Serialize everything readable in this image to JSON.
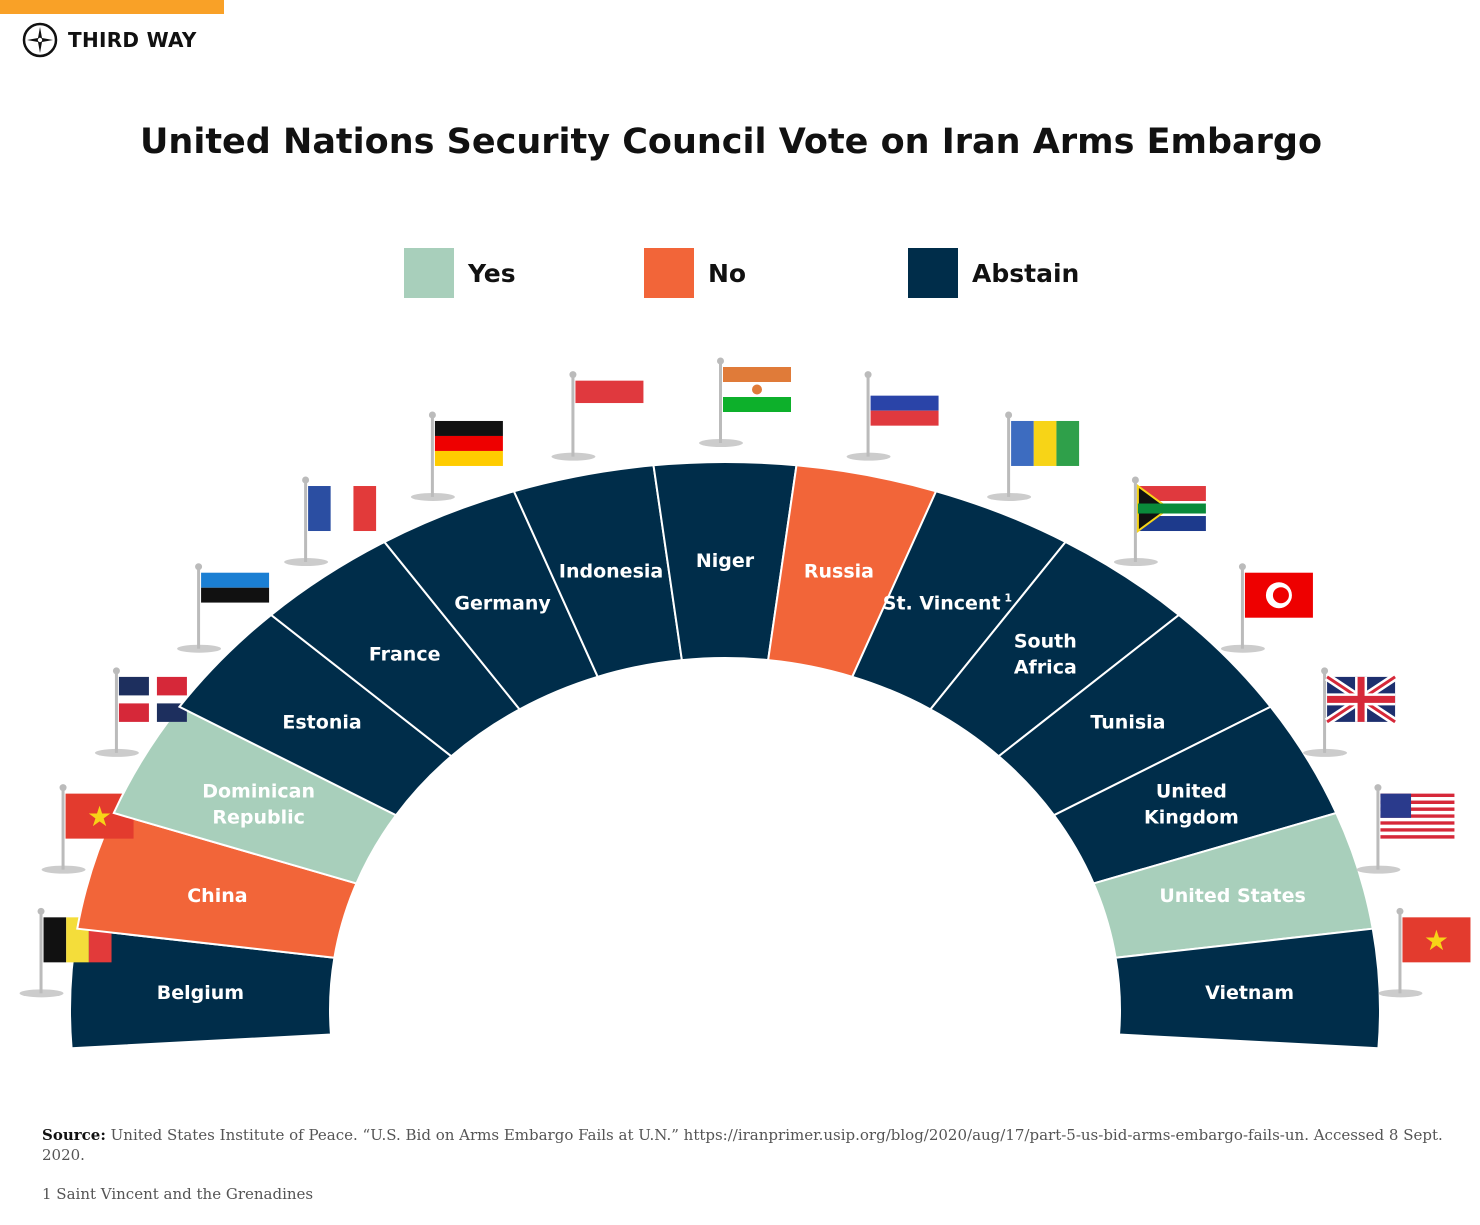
{
  "brand": {
    "name": "THIRD WAY",
    "accent": "#f9a127",
    "logo_icon": "compass-star-icon"
  },
  "title": "United Nations Security Council Vote on Iran Arms Embargo",
  "legend": [
    {
      "key": "yes",
      "label": "Yes",
      "color": "#a8cfbb"
    },
    {
      "key": "no",
      "label": "No",
      "color": "#f26539"
    },
    {
      "key": "abstain",
      "label": "Abstain",
      "color": "#002d4a"
    }
  ],
  "chart_data": {
    "type": "pie",
    "variant": "semicircle-parliament",
    "title": "United Nations Security Council Vote on Iran Arms Embargo",
    "categories": [
      "Belgium",
      "China",
      "Dominican Republic",
      "Estonia",
      "France",
      "Germany",
      "Indonesia",
      "Niger",
      "Russia",
      "St. Vincent",
      "South Africa",
      "Tunisia",
      "United Kingdom",
      "United States",
      "Vietnam"
    ],
    "members": [
      {
        "country": "Belgium",
        "lines": [
          "Belgium"
        ],
        "vote": "abstain"
      },
      {
        "country": "China",
        "lines": [
          "China"
        ],
        "vote": "no"
      },
      {
        "country": "Dominican Republic",
        "lines": [
          "Dominican",
          "Republic"
        ],
        "vote": "yes"
      },
      {
        "country": "Estonia",
        "lines": [
          "Estonia"
        ],
        "vote": "abstain"
      },
      {
        "country": "France",
        "lines": [
          "France"
        ],
        "vote": "abstain"
      },
      {
        "country": "Germany",
        "lines": [
          "Germany"
        ],
        "vote": "abstain"
      },
      {
        "country": "Indonesia",
        "lines": [
          "Indonesia"
        ],
        "vote": "abstain"
      },
      {
        "country": "Niger",
        "lines": [
          "Niger"
        ],
        "vote": "abstain"
      },
      {
        "country": "Russia",
        "lines": [
          "Russia"
        ],
        "vote": "no"
      },
      {
        "country": "St. Vincent",
        "lines": [
          "St. Vincent"
        ],
        "footnote_mark": "1",
        "vote": "abstain"
      },
      {
        "country": "South Africa",
        "lines": [
          "South",
          "Africa"
        ],
        "vote": "abstain"
      },
      {
        "country": "Tunisia",
        "lines": [
          "Tunisia"
        ],
        "vote": "abstain"
      },
      {
        "country": "United Kingdom",
        "lines": [
          "United",
          "Kingdom"
        ],
        "vote": "abstain"
      },
      {
        "country": "United States",
        "lines": [
          "United States"
        ],
        "vote": "yes"
      },
      {
        "country": "Vietnam",
        "lines": [
          "Vietnam"
        ],
        "vote": "abstain"
      }
    ],
    "totals": {
      "yes": 2,
      "no": 2,
      "abstain": 11
    }
  },
  "footer": {
    "source_label": "Source:",
    "source_text": "United States Institute of Peace. “U.S. Bid on Arms Embargo Fails at U.N.” https://iranprimer.usip.org/blog/2020/aug/17/part-5-us-bid-arms-embargo-fails-un. Accessed 8 Sept. 2020.",
    "footnote": "1 Saint Vincent and the Grenadines"
  }
}
